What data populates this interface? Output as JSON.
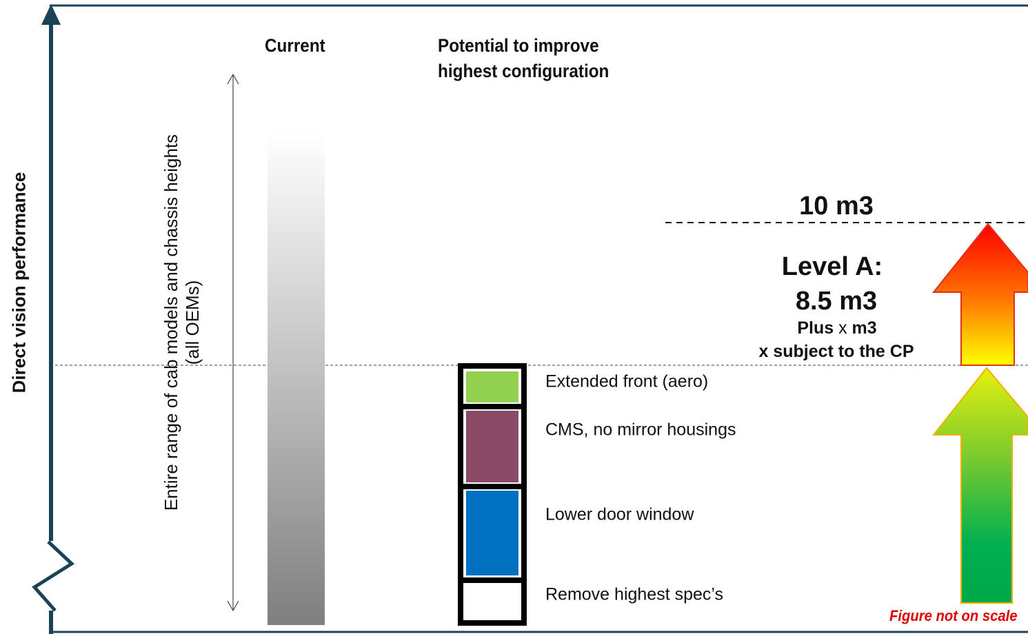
{
  "y_axis": {
    "title": "Direct vision performance"
  },
  "columns": {
    "current": "Current",
    "potential": "Potential to improve\nhighest configuration"
  },
  "range": {
    "label": "Entire range of cab models and chassis heights\n(all OEMs)"
  },
  "improvements": [
    {
      "label": "Extended front (aero)",
      "color": "#92d050"
    },
    {
      "label": "CMS, no mirror housings",
      "color": "#8b4a66"
    },
    {
      "label": "Lower door window",
      "color": "#0070c0"
    },
    {
      "label": "Remove highest spec’s",
      "color": "#ffffff"
    }
  ],
  "target": {
    "label": "10 m3"
  },
  "level_a": {
    "title": "Level A:",
    "value": "8.5 m3",
    "plus_prefix": "Plus ",
    "plus_x": "x",
    "plus_suffix": " m3",
    "note": "x subject to the CP"
  },
  "footnote": "Figure not on scale",
  "colors": {
    "frame": "#1a4356",
    "arrow_top_start": "#ff0000",
    "arrow_top_end": "#ffff00",
    "arrow_bottom_start": "#d6f01a",
    "arrow_bottom_end": "#00b050",
    "current_bar_light": "#ffffff",
    "current_bar_dark": "#7f7f7f",
    "footnote": "#e00000"
  }
}
